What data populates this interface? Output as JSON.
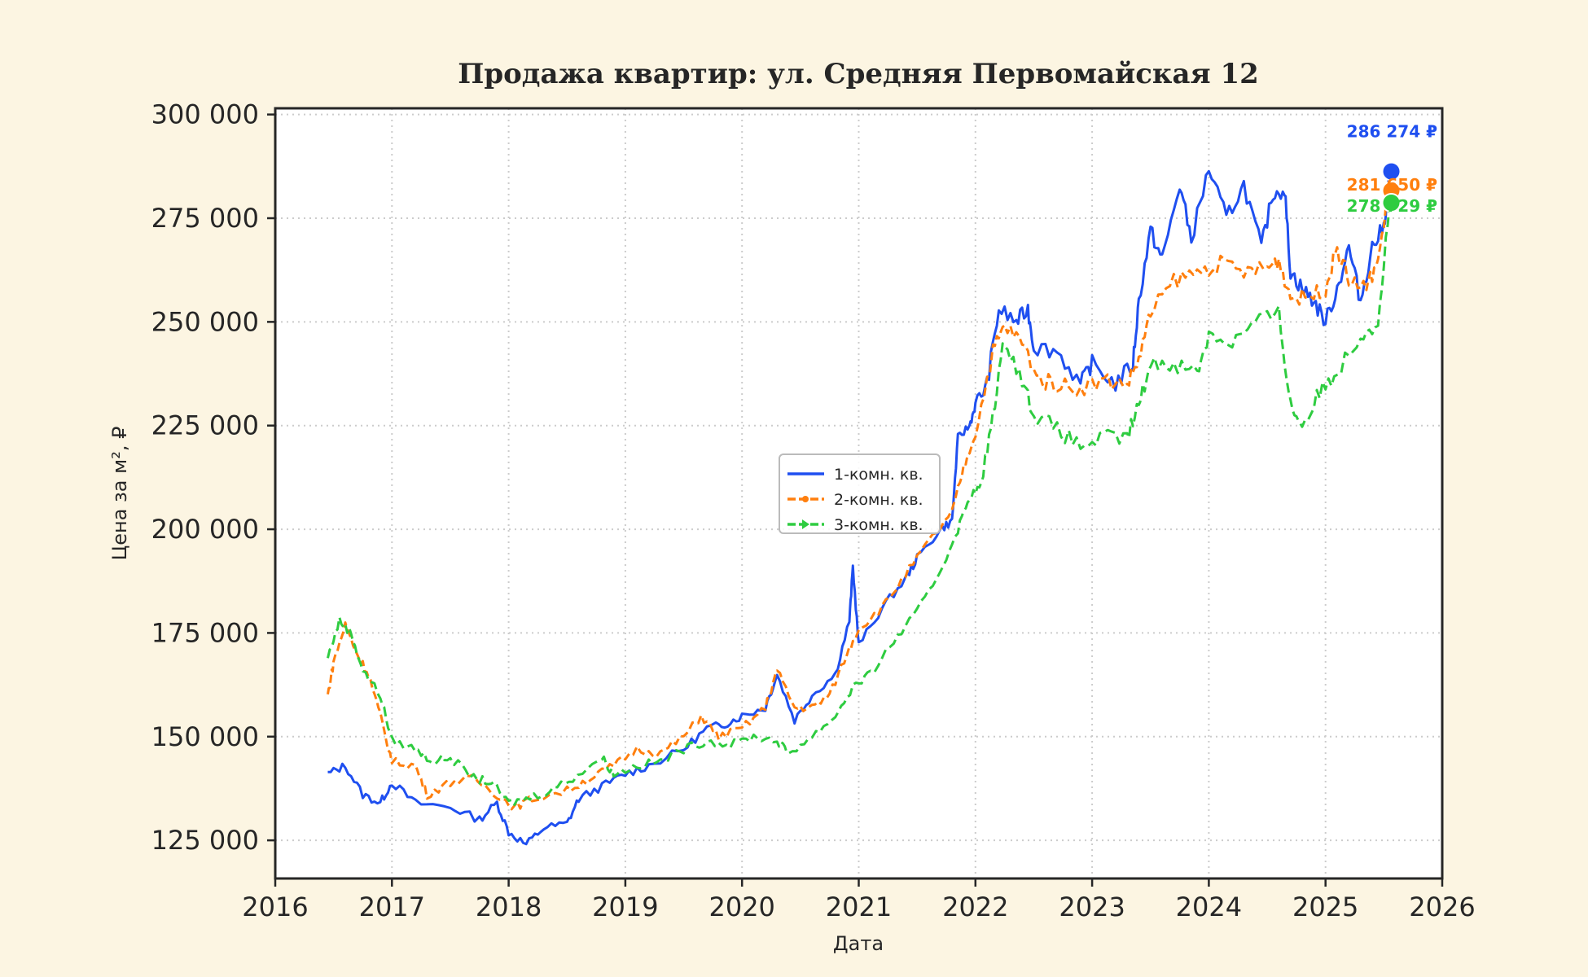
{
  "chart_data": {
    "type": "line",
    "title": "Продажа квартир: ул. Средняя Первомайская 12",
    "xlabel": "Дата",
    "ylabel": "Цена за м², ₽",
    "xlim": [
      2016,
      2026
    ],
    "ylim": [
      115800,
      301500
    ],
    "grid": true,
    "legend_placement": "center",
    "x_ticks": [
      "2016",
      "2017",
      "2018",
      "2019",
      "2020",
      "2021",
      "2022",
      "2023",
      "2024",
      "2025",
      "2026"
    ],
    "y_ticks": [
      125000,
      150000,
      175000,
      200000,
      225000,
      250000,
      275000,
      300000
    ],
    "y_tick_labels": [
      "125 000",
      "150 000",
      "175 000",
      "200 000",
      "225 000",
      "250 000",
      "275 000",
      "300 000"
    ],
    "series": [
      {
        "name": "1-комн. кв.",
        "color": "#1f4ff0",
        "style": "solid",
        "last_label": "286 274 ₽",
        "last_value": 286274,
        "x": [
          2016.45,
          2016.6,
          2016.75,
          2016.9,
          2017.0,
          2017.2,
          2017.5,
          2017.75,
          2017.9,
          2018.0,
          2018.15,
          2018.3,
          2018.5,
          2018.6,
          2018.8,
          2019.0,
          2019.2,
          2019.5,
          2019.7,
          2019.85,
          2020.0,
          2020.2,
          2020.3,
          2020.45,
          2020.6,
          2020.8,
          2020.92,
          2020.95,
          2021.0,
          2021.2,
          2021.4,
          2021.5,
          2021.7,
          2021.8,
          2021.85,
          2021.95,
          2022.0,
          2022.1,
          2022.2,
          2022.35,
          2022.45,
          2022.5,
          2022.7,
          2022.9,
          2023.0,
          2023.2,
          2023.35,
          2023.4,
          2023.5,
          2023.6,
          2023.75,
          2023.85,
          2024.0,
          2024.15,
          2024.3,
          2024.45,
          2024.55,
          2024.65,
          2024.7,
          2024.8,
          2024.9,
          2025.0,
          2025.1,
          2025.2,
          2025.3,
          2025.4,
          2025.5,
          2025.55
        ],
        "y": [
          141,
          143,
          136,
          134,
          139,
          134,
          133,
          130,
          134,
          127,
          124,
          128,
          129,
          135,
          138,
          141,
          143,
          147,
          152,
          153,
          155,
          157,
          165,
          154,
          160,
          165,
          178,
          191,
          172,
          181,
          188,
          193,
          200,
          202,
          222,
          225,
          230,
          235,
          253,
          250,
          253,
          244,
          243,
          235,
          240,
          235,
          240,
          255,
          272,
          265,
          283,
          270,
          287,
          275,
          283,
          268,
          281,
          282,
          262,
          258,
          255,
          250,
          258,
          268,
          255,
          268,
          273,
          286.274
        ]
      },
      {
        "name": "2-комн. кв.",
        "color": "#ff7f0e",
        "style": "dashed-dot",
        "last_label": "281 650 ₽",
        "last_value": 281650,
        "x": [
          2016.45,
          2016.5,
          2016.6,
          2016.7,
          2016.8,
          2016.9,
          2017.0,
          2017.2,
          2017.3,
          2017.5,
          2017.7,
          2017.9,
          2018.05,
          2018.2,
          2018.5,
          2018.7,
          2018.9,
          2019.1,
          2019.3,
          2019.5,
          2019.65,
          2019.8,
          2020.0,
          2020.2,
          2020.3,
          2020.45,
          2020.6,
          2020.75,
          2020.9,
          2021.0,
          2021.2,
          2021.4,
          2021.6,
          2021.8,
          2021.9,
          2022.0,
          2022.15,
          2022.25,
          2022.4,
          2022.55,
          2022.7,
          2022.9,
          2023.1,
          2023.3,
          2023.4,
          2023.5,
          2023.7,
          2023.9,
          2024.1,
          2024.3,
          2024.5,
          2024.6,
          2024.7,
          2024.85,
          2025.0,
          2025.1,
          2025.2,
          2025.35,
          2025.45,
          2025.55
        ],
        "y": [
          160,
          168,
          177,
          170,
          165,
          155,
          144,
          143,
          136,
          139,
          140,
          136,
          133,
          135,
          137,
          140,
          143,
          147,
          146,
          150,
          155,
          150,
          152,
          157,
          166,
          157,
          157,
          160,
          170,
          176,
          181,
          189,
          197,
          204,
          215,
          223,
          243,
          249,
          245,
          236,
          235,
          234,
          236,
          235,
          241,
          252,
          260,
          262,
          264,
          262,
          263,
          265,
          256,
          256,
          258,
          268,
          260,
          258,
          265,
          281.65
        ]
      },
      {
        "name": "3-комн. кв.",
        "color": "#2ecc40",
        "style": "dashed-triangle",
        "last_label": "278 729 ₽",
        "last_value": 278729,
        "x": [
          2016.45,
          2016.55,
          2016.65,
          2016.75,
          2016.9,
          2017.0,
          2017.2,
          2017.35,
          2017.5,
          2017.7,
          2017.85,
          2018.0,
          2018.15,
          2018.35,
          2018.55,
          2018.8,
          2018.9,
          2019.1,
          2019.3,
          2019.5,
          2019.7,
          2019.9,
          2020.1,
          2020.3,
          2020.4,
          2020.6,
          2020.8,
          2020.95,
          2021.1,
          2021.3,
          2021.5,
          2021.7,
          2021.85,
          2021.95,
          2022.05,
          2022.15,
          2022.25,
          2022.4,
          2022.5,
          2022.7,
          2022.9,
          2023.1,
          2023.3,
          2023.4,
          2023.5,
          2023.7,
          2023.9,
          2024.0,
          2024.2,
          2024.4,
          2024.6,
          2024.7,
          2024.8,
          2024.95,
          2025.1,
          2025.3,
          2025.45,
          2025.55
        ],
        "y": [
          169,
          178,
          175,
          166,
          160,
          149,
          147,
          144,
          145,
          140,
          139,
          134,
          135,
          137,
          140,
          145,
          141,
          143,
          144,
          147,
          149,
          148,
          150,
          149,
          146,
          150,
          155,
          162,
          165,
          173,
          180,
          190,
          200,
          208,
          210,
          228,
          246,
          236,
          228,
          224,
          220,
          222,
          222,
          230,
          240,
          240,
          238,
          247,
          245,
          250,
          252,
          230,
          225,
          233,
          238,
          247,
          250,
          278.729
        ]
      }
    ]
  }
}
